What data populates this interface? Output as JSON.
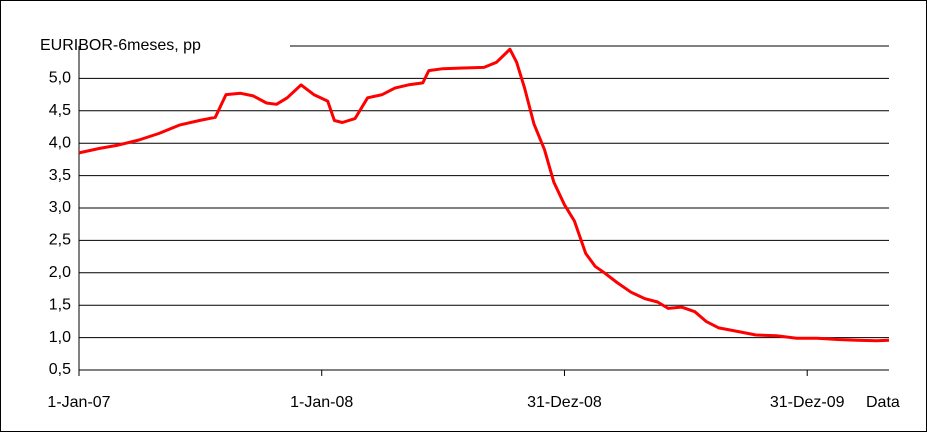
{
  "chart_data": {
    "type": "line",
    "y_label": "EURIBOR-6meses, pp",
    "x_label": "Data",
    "x": [
      "2007-01-01",
      "2007-02-01",
      "2007-03-01",
      "2007-04-01",
      "2007-05-01",
      "2007-06-01",
      "2007-07-01",
      "2007-07-25",
      "2007-08-10",
      "2007-09-01",
      "2007-09-20",
      "2007-10-10",
      "2007-10-25",
      "2007-11-10",
      "2007-12-01",
      "2007-12-20",
      "2008-01-10",
      "2008-01-20",
      "2008-02-01",
      "2008-02-20",
      "2008-03-10",
      "2008-04-01",
      "2008-04-20",
      "2008-05-10",
      "2008-06-01",
      "2008-06-10",
      "2008-07-01",
      "2008-08-01",
      "2008-09-01",
      "2008-09-20",
      "2008-10-05",
      "2008-10-10",
      "2008-10-20",
      "2008-11-01",
      "2008-11-15",
      "2008-12-01",
      "2008-12-15",
      "2008-12-31",
      "2009-01-15",
      "2009-02-01",
      "2009-02-15",
      "2009-03-01",
      "2009-03-20",
      "2009-04-10",
      "2009-05-01",
      "2009-05-20",
      "2009-06-05",
      "2009-06-25",
      "2009-07-15",
      "2009-08-01",
      "2009-08-20",
      "2009-09-15",
      "2009-10-15",
      "2009-11-15",
      "2009-12-15",
      "2010-01-15",
      "2010-02-15",
      "2010-03-15",
      "2010-04-15",
      "2010-05-03"
    ],
    "series": [
      {
        "name": "EURIBOR-6meses",
        "color": "#ff0000",
        "values": [
          3.85,
          3.92,
          3.97,
          4.05,
          4.15,
          4.28,
          4.35,
          4.4,
          4.75,
          4.77,
          4.73,
          4.62,
          4.6,
          4.7,
          4.9,
          4.75,
          4.65,
          4.35,
          4.32,
          4.38,
          4.7,
          4.75,
          4.85,
          4.9,
          4.93,
          5.12,
          5.15,
          5.16,
          5.17,
          5.25,
          5.4,
          5.45,
          5.25,
          4.85,
          4.3,
          3.9,
          3.4,
          3.05,
          2.8,
          2.3,
          2.1,
          2.0,
          1.85,
          1.7,
          1.6,
          1.55,
          1.45,
          1.47,
          1.4,
          1.25,
          1.15,
          1.1,
          1.04,
          1.03,
          0.99,
          0.99,
          0.97,
          0.96,
          0.95,
          0.96
        ]
      }
    ],
    "xlim": [
      "2007-01-01",
      "2010-05-03"
    ],
    "xticks": [
      {
        "value": "2007-01-01",
        "label": "1-Jan-07"
      },
      {
        "value": "2008-01-01",
        "label": "1-Jan-08"
      },
      {
        "value": "2008-12-31",
        "label": "31-Dez-08"
      },
      {
        "value": "2009-12-31",
        "label": "31-Dez-09"
      }
    ],
    "ylim": [
      0.5,
      5.5
    ],
    "yticks": [
      {
        "value": 0.5,
        "label": "0,5"
      },
      {
        "value": 1.0,
        "label": "1,0"
      },
      {
        "value": 1.5,
        "label": "1,5"
      },
      {
        "value": 2.0,
        "label": "2,0"
      },
      {
        "value": 2.5,
        "label": "2,5"
      },
      {
        "value": 3.0,
        "label": "3,0"
      },
      {
        "value": 3.5,
        "label": "3,5"
      },
      {
        "value": 4.0,
        "label": "4,0"
      },
      {
        "value": 4.5,
        "label": "4,5"
      },
      {
        "value": 5.0,
        "label": "5,0"
      }
    ],
    "grid": true
  }
}
